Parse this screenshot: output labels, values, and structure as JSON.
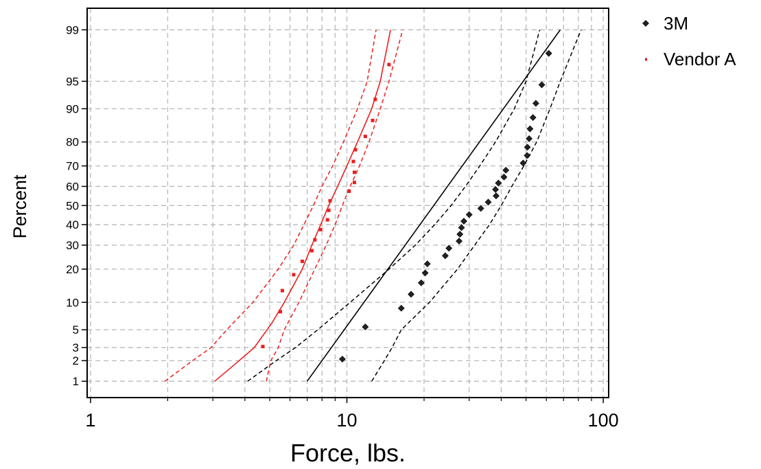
{
  "chart_data": {
    "type": "scatter",
    "title": "",
    "xlabel": "Force, lbs.",
    "ylabel": "Percent",
    "x_scale": "log",
    "y_scale": "probability",
    "xlim": [
      0.97,
      105
    ],
    "ylim": [
      0.55,
      99.55
    ],
    "grid": true,
    "legend_placement": "outside-top-right",
    "x_ticks": [
      1,
      10,
      100
    ],
    "x_tick_labels": [
      "1",
      "10",
      "100"
    ],
    "y_ticks": [
      1,
      2,
      3,
      5,
      10,
      20,
      30,
      40,
      50,
      60,
      70,
      80,
      90,
      95,
      99
    ],
    "y_tick_labels": [
      "1",
      "2",
      "3",
      "5",
      "10",
      "20",
      "30",
      "40",
      "50",
      "60",
      "70",
      "80",
      "90",
      "95",
      "99"
    ],
    "series": [
      {
        "name": "3M",
        "color": "#000000",
        "marker": "diamond",
        "points": [
          {
            "x": 9.6,
            "y": 2.1
          },
          {
            "x": 11.8,
            "y": 5.4
          },
          {
            "x": 16.3,
            "y": 8.7
          },
          {
            "x": 17.8,
            "y": 12
          },
          {
            "x": 19.5,
            "y": 15.3
          },
          {
            "x": 20.2,
            "y": 18.6
          },
          {
            "x": 20.6,
            "y": 22
          },
          {
            "x": 24.2,
            "y": 25.3
          },
          {
            "x": 25,
            "y": 28.6
          },
          {
            "x": 27.4,
            "y": 31.9
          },
          {
            "x": 27.6,
            "y": 35.2
          },
          {
            "x": 28,
            "y": 38.5
          },
          {
            "x": 28.6,
            "y": 41.8
          },
          {
            "x": 30,
            "y": 45.2
          },
          {
            "x": 33.3,
            "y": 48.5
          },
          {
            "x": 35.6,
            "y": 51.8
          },
          {
            "x": 38.2,
            "y": 55.1
          },
          {
            "x": 38,
            "y": 58.4
          },
          {
            "x": 39,
            "y": 61.7
          },
          {
            "x": 41,
            "y": 64.7
          },
          {
            "x": 41.7,
            "y": 68
          },
          {
            "x": 48.7,
            "y": 71.3
          },
          {
            "x": 50.5,
            "y": 74.6
          },
          {
            "x": 50.6,
            "y": 78
          },
          {
            "x": 51.4,
            "y": 81.2
          },
          {
            "x": 51.8,
            "y": 84.5
          },
          {
            "x": 53.2,
            "y": 87.8
          },
          {
            "x": 54.6,
            "y": 91.2
          },
          {
            "x": 57.6,
            "y": 94.5
          },
          {
            "x": 61.3,
            "y": 97.8
          }
        ],
        "fit": [
          {
            "x": 7,
            "y": 1
          },
          {
            "x": 68,
            "y": 99
          }
        ],
        "ci_lower": [
          {
            "x": 12.5,
            "y": 1
          },
          {
            "x": 14,
            "y": 2
          },
          {
            "x": 15,
            "y": 3
          },
          {
            "x": 16.3,
            "y": 5
          },
          {
            "x": 21,
            "y": 10
          },
          {
            "x": 27,
            "y": 20
          },
          {
            "x": 31.5,
            "y": 30
          },
          {
            "x": 36,
            "y": 40
          },
          {
            "x": 40,
            "y": 50
          },
          {
            "x": 44,
            "y": 60
          },
          {
            "x": 49,
            "y": 70
          },
          {
            "x": 55,
            "y": 80
          },
          {
            "x": 62,
            "y": 90
          },
          {
            "x": 68,
            "y": 95
          },
          {
            "x": 82,
            "y": 99
          }
        ],
        "ci_upper": [
          {
            "x": 4.1,
            "y": 1
          },
          {
            "x": 5.3,
            "y": 2
          },
          {
            "x": 6.3,
            "y": 3
          },
          {
            "x": 7.7,
            "y": 5
          },
          {
            "x": 10.3,
            "y": 10
          },
          {
            "x": 14.6,
            "y": 20
          },
          {
            "x": 18.5,
            "y": 30
          },
          {
            "x": 22,
            "y": 40
          },
          {
            "x": 25.5,
            "y": 50
          },
          {
            "x": 29,
            "y": 60
          },
          {
            "x": 33,
            "y": 70
          },
          {
            "x": 38,
            "y": 80
          },
          {
            "x": 45,
            "y": 90
          },
          {
            "x": 50,
            "y": 95
          },
          {
            "x": 56.5,
            "y": 99
          }
        ]
      },
      {
        "name": "Vendor A",
        "color": "#ee1c1c",
        "marker": "square",
        "points": [
          {
            "x": 4.7,
            "y": 3.1
          },
          {
            "x": 5.5,
            "y": 8
          },
          {
            "x": 5.6,
            "y": 13
          },
          {
            "x": 6.2,
            "y": 18
          },
          {
            "x": 6.7,
            "y": 23
          },
          {
            "x": 7.3,
            "y": 27.5
          },
          {
            "x": 7.5,
            "y": 32.5
          },
          {
            "x": 7.9,
            "y": 37.5
          },
          {
            "x": 8.4,
            "y": 42.5
          },
          {
            "x": 8.5,
            "y": 47.5
          },
          {
            "x": 8.6,
            "y": 52.5
          },
          {
            "x": 10.2,
            "y": 57.5
          },
          {
            "x": 10.7,
            "y": 62
          },
          {
            "x": 10.7,
            "y": 67
          },
          {
            "x": 10.6,
            "y": 72
          },
          {
            "x": 10.8,
            "y": 77
          },
          {
            "x": 11.8,
            "y": 82
          },
          {
            "x": 12.6,
            "y": 87
          },
          {
            "x": 12.9,
            "y": 92
          },
          {
            "x": 14.6,
            "y": 96.9
          }
        ],
        "fit": [
          {
            "x": 3.05,
            "y": 1
          },
          {
            "x": 3.8,
            "y": 2
          },
          {
            "x": 4.35,
            "y": 3
          },
          {
            "x": 5.1,
            "y": 6
          },
          {
            "x": 5.7,
            "y": 10
          },
          {
            "x": 6.7,
            "y": 20
          },
          {
            "x": 7.3,
            "y": 30
          },
          {
            "x": 7.9,
            "y": 40
          },
          {
            "x": 8.5,
            "y": 50
          },
          {
            "x": 9.2,
            "y": 60
          },
          {
            "x": 10,
            "y": 70
          },
          {
            "x": 11,
            "y": 80
          },
          {
            "x": 12.5,
            "y": 90
          },
          {
            "x": 13.5,
            "y": 95
          },
          {
            "x": 14.8,
            "y": 99
          }
        ],
        "ci_lower": [
          {
            "x": 4.85,
            "y": 1
          },
          {
            "x": 5.05,
            "y": 2
          },
          {
            "x": 5.4,
            "y": 3
          },
          {
            "x": 5.7,
            "y": 5
          },
          {
            "x": 6.5,
            "y": 10
          },
          {
            "x": 7.5,
            "y": 20
          },
          {
            "x": 8.3,
            "y": 30
          },
          {
            "x": 9,
            "y": 40
          },
          {
            "x": 9.6,
            "y": 50
          },
          {
            "x": 10.3,
            "y": 60
          },
          {
            "x": 11.2,
            "y": 70
          },
          {
            "x": 12.2,
            "y": 80
          },
          {
            "x": 13.5,
            "y": 90
          },
          {
            "x": 14.6,
            "y": 95
          },
          {
            "x": 16.5,
            "y": 99
          }
        ],
        "ci_upper": [
          {
            "x": 1.95,
            "y": 1
          },
          {
            "x": 2.5,
            "y": 2
          },
          {
            "x": 2.95,
            "y": 3
          },
          {
            "x": 3.4,
            "y": 5
          },
          {
            "x": 4.3,
            "y": 10
          },
          {
            "x": 5.4,
            "y": 20
          },
          {
            "x": 6.2,
            "y": 30
          },
          {
            "x": 6.8,
            "y": 40
          },
          {
            "x": 7.4,
            "y": 50
          },
          {
            "x": 8,
            "y": 60
          },
          {
            "x": 8.8,
            "y": 70
          },
          {
            "x": 9.7,
            "y": 80
          },
          {
            "x": 11,
            "y": 90
          },
          {
            "x": 12,
            "y": 95
          },
          {
            "x": 13,
            "y": 99
          }
        ]
      }
    ]
  }
}
